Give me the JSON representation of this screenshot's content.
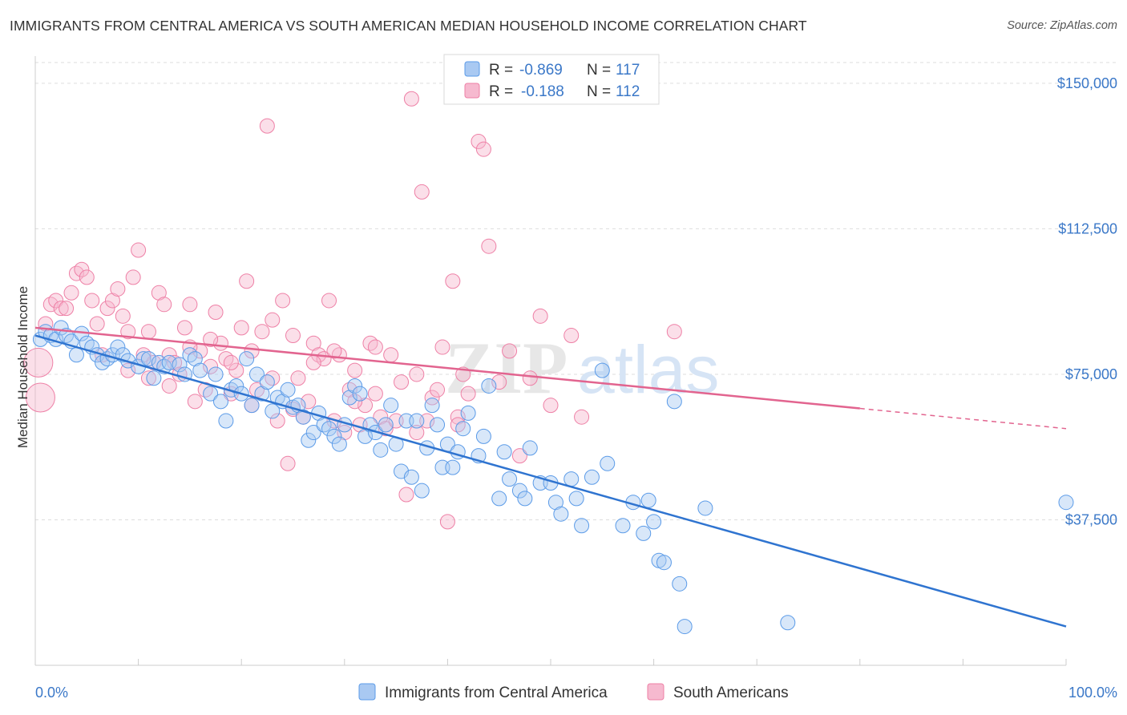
{
  "title": "IMMIGRANTS FROM CENTRAL AMERICA VS SOUTH AMERICAN MEDIAN HOUSEHOLD INCOME CORRELATION CHART",
  "source": "Source: ZipAtlas.com",
  "watermark": {
    "zip": "ZIP",
    "atlas": "atlas"
  },
  "chart_data": {
    "type": "scatter",
    "xlabel": "",
    "ylabel": "Median Household Income",
    "xlim": [
      0,
      100
    ],
    "ylim": [
      0,
      157000
    ],
    "x_tick_labels": {
      "left": "0.0%",
      "right": "100.0%"
    },
    "y_ticks": [
      {
        "value": 37500,
        "label": "$37,500"
      },
      {
        "value": 75000,
        "label": "$75,000"
      },
      {
        "value": 112500,
        "label": "$112,500"
      },
      {
        "value": 150000,
        "label": "$150,000"
      }
    ],
    "legend": {
      "r_label": "R =",
      "n_label": "N =",
      "entries": [
        {
          "name": "Immigrants from Central America",
          "r": "-0.869",
          "n": "117",
          "color": "#5b9be8",
          "fill": "#a9c9f2"
        },
        {
          "name": "South Americans",
          "r": "-0.188",
          "n": "112",
          "color": "#ee80a6",
          "fill": "#f6b9cf"
        }
      ]
    },
    "series": [
      {
        "name": "Immigrants from Central America",
        "color": "#5b9be8",
        "trend": {
          "x0": 0,
          "y0": 85000,
          "x1": 100,
          "y1": 10000,
          "dash_from": null
        },
        "points": [
          [
            0.5,
            84000
          ],
          [
            1,
            86000
          ],
          [
            1.5,
            85000
          ],
          [
            2,
            84000
          ],
          [
            2.5,
            87000
          ],
          [
            3,
            85000
          ],
          [
            3.5,
            83500
          ],
          [
            4,
            80000
          ],
          [
            4.5,
            85500
          ],
          [
            5,
            83000
          ],
          [
            5.5,
            82000
          ],
          [
            6,
            80000
          ],
          [
            6.5,
            78000
          ],
          [
            7,
            79000
          ],
          [
            7.5,
            80000
          ],
          [
            8,
            82000
          ],
          [
            8.5,
            80000
          ],
          [
            9,
            78500
          ],
          [
            10,
            77000
          ],
          [
            10.5,
            79000
          ],
          [
            11,
            79000
          ],
          [
            11.5,
            74000
          ],
          [
            12,
            78000
          ],
          [
            12.5,
            77000
          ],
          [
            13,
            78000
          ],
          [
            14,
            77500
          ],
          [
            14.5,
            75000
          ],
          [
            15,
            80000
          ],
          [
            15.5,
            79000
          ],
          [
            16,
            76000
          ],
          [
            17,
            70000
          ],
          [
            17.5,
            75000
          ],
          [
            18,
            68000
          ],
          [
            18.5,
            63000
          ],
          [
            19,
            71000
          ],
          [
            19.5,
            72000
          ],
          [
            20,
            70000
          ],
          [
            20.5,
            79000
          ],
          [
            21,
            67000
          ],
          [
            21.5,
            75000
          ],
          [
            22,
            70000
          ],
          [
            22.5,
            73000
          ],
          [
            23,
            65500
          ],
          [
            23.5,
            69000
          ],
          [
            24,
            68000
          ],
          [
            24.5,
            71000
          ],
          [
            25,
            66500
          ],
          [
            25.5,
            67000
          ],
          [
            26,
            64000
          ],
          [
            26.5,
            58000
          ],
          [
            27,
            60000
          ],
          [
            27.5,
            65000
          ],
          [
            28,
            62000
          ],
          [
            28.5,
            61000
          ],
          [
            29,
            59000
          ],
          [
            29.5,
            57000
          ],
          [
            30,
            62000
          ],
          [
            30.5,
            69000
          ],
          [
            31,
            72000
          ],
          [
            31.5,
            70000
          ],
          [
            32,
            59000
          ],
          [
            32.5,
            62000
          ],
          [
            33,
            60000
          ],
          [
            33.5,
            55500
          ],
          [
            34,
            62000
          ],
          [
            34.5,
            67000
          ],
          [
            35,
            57000
          ],
          [
            35.5,
            50000
          ],
          [
            36,
            63000
          ],
          [
            36.5,
            48500
          ],
          [
            37,
            63000
          ],
          [
            37.5,
            45000
          ],
          [
            38,
            56000
          ],
          [
            38.5,
            67000
          ],
          [
            39,
            62000
          ],
          [
            39.5,
            51000
          ],
          [
            40,
            57000
          ],
          [
            40.5,
            51000
          ],
          [
            41,
            55000
          ],
          [
            41.5,
            61000
          ],
          [
            42,
            65000
          ],
          [
            43,
            54000
          ],
          [
            43.5,
            59000
          ],
          [
            44,
            72000
          ],
          [
            45,
            43000
          ],
          [
            45.5,
            55000
          ],
          [
            46,
            48000
          ],
          [
            47,
            45000
          ],
          [
            47.5,
            43000
          ],
          [
            48,
            56000
          ],
          [
            49,
            47000
          ],
          [
            50,
            47000
          ],
          [
            50.5,
            42000
          ],
          [
            51,
            39000
          ],
          [
            52,
            48000
          ],
          [
            52.5,
            43000
          ],
          [
            53,
            36000
          ],
          [
            54,
            48500
          ],
          [
            55,
            76000
          ],
          [
            55.5,
            52000
          ],
          [
            57,
            36000
          ],
          [
            58,
            42000
          ],
          [
            59,
            34000
          ],
          [
            59.5,
            42500
          ],
          [
            60,
            37000
          ],
          [
            60.5,
            27000
          ],
          [
            61,
            26500
          ],
          [
            62,
            68000
          ],
          [
            62.5,
            21000
          ],
          [
            63,
            10000
          ],
          [
            65,
            40500
          ],
          [
            73,
            11000
          ],
          [
            100,
            42000
          ]
        ]
      },
      {
        "name": "South Americans",
        "color": "#ee80a6",
        "trend": {
          "x0": 0,
          "y0": 87000,
          "x1": 100,
          "y1": 61000,
          "dash_from": 80
        },
        "points": [
          [
            0.3,
            78000
          ],
          [
            0.5,
            69000
          ],
          [
            1,
            88000
          ],
          [
            1.5,
            93000
          ],
          [
            2,
            94000
          ],
          [
            2.5,
            92000
          ],
          [
            3,
            92000
          ],
          [
            3.5,
            96000
          ],
          [
            4,
            101000
          ],
          [
            4.5,
            102000
          ],
          [
            5,
            100000
          ],
          [
            5.5,
            94000
          ],
          [
            6,
            88000
          ],
          [
            6.5,
            80000
          ],
          [
            7,
            92000
          ],
          [
            7.5,
            94000
          ],
          [
            8,
            97000
          ],
          [
            8.5,
            90000
          ],
          [
            9,
            86000
          ],
          [
            9.5,
            100000
          ],
          [
            10,
            107000
          ],
          [
            10.5,
            80000
          ],
          [
            11,
            86000
          ],
          [
            11.5,
            78000
          ],
          [
            12,
            96000
          ],
          [
            12.5,
            93000
          ],
          [
            13,
            80000
          ],
          [
            13.5,
            78000
          ],
          [
            14,
            75000
          ],
          [
            14.5,
            87000
          ],
          [
            15,
            93000
          ],
          [
            15.5,
            68000
          ],
          [
            16,
            81000
          ],
          [
            16.5,
            71000
          ],
          [
            17,
            77000
          ],
          [
            17.5,
            91000
          ],
          [
            18,
            83000
          ],
          [
            18.5,
            79000
          ],
          [
            19,
            70000
          ],
          [
            19.5,
            76000
          ],
          [
            20,
            87000
          ],
          [
            20.5,
            99000
          ],
          [
            21,
            67000
          ],
          [
            21.5,
            71000
          ],
          [
            22,
            86000
          ],
          [
            22.5,
            139000
          ],
          [
            23,
            89000
          ],
          [
            23.5,
            63000
          ],
          [
            24,
            94000
          ],
          [
            24.5,
            52000
          ],
          [
            25,
            85000
          ],
          [
            25.5,
            74000
          ],
          [
            26,
            64000
          ],
          [
            26.5,
            68000
          ],
          [
            27,
            83000
          ],
          [
            27.5,
            80000
          ],
          [
            28,
            79000
          ],
          [
            28.5,
            94000
          ],
          [
            29,
            63000
          ],
          [
            29.5,
            80000
          ],
          [
            30,
            60000
          ],
          [
            30.5,
            71000
          ],
          [
            31,
            76000
          ],
          [
            31.5,
            62000
          ],
          [
            32,
            67000
          ],
          [
            32.5,
            83000
          ],
          [
            33,
            82000
          ],
          [
            33.5,
            64000
          ],
          [
            34,
            61000
          ],
          [
            34.5,
            80000
          ],
          [
            35,
            63000
          ],
          [
            35.5,
            73000
          ],
          [
            36,
            44000
          ],
          [
            36.5,
            146000
          ],
          [
            37,
            75000
          ],
          [
            37.5,
            122000
          ],
          [
            38,
            63000
          ],
          [
            38.5,
            69000
          ],
          [
            39,
            71000
          ],
          [
            39.5,
            82000
          ],
          [
            40,
            37000
          ],
          [
            40.5,
            99000
          ],
          [
            41,
            64000
          ],
          [
            41.5,
            75000
          ],
          [
            42,
            70000
          ],
          [
            43,
            135000
          ],
          [
            43.5,
            133000
          ],
          [
            44,
            108000
          ],
          [
            45,
            73000
          ],
          [
            46,
            81000
          ],
          [
            47,
            54000
          ],
          [
            48,
            74000
          ],
          [
            49,
            90000
          ],
          [
            50,
            67000
          ],
          [
            52,
            85000
          ],
          [
            53,
            64000
          ],
          [
            62,
            86000
          ],
          [
            9,
            76000
          ],
          [
            11,
            74000
          ],
          [
            13,
            72000
          ],
          [
            15,
            82000
          ],
          [
            17,
            84000
          ],
          [
            19,
            78000
          ],
          [
            21,
            81000
          ],
          [
            23,
            74000
          ],
          [
            25,
            66000
          ],
          [
            27,
            78000
          ],
          [
            29,
            81000
          ],
          [
            31,
            68000
          ],
          [
            33,
            70000
          ],
          [
            37,
            60000
          ],
          [
            41,
            62000
          ]
        ]
      }
    ]
  }
}
